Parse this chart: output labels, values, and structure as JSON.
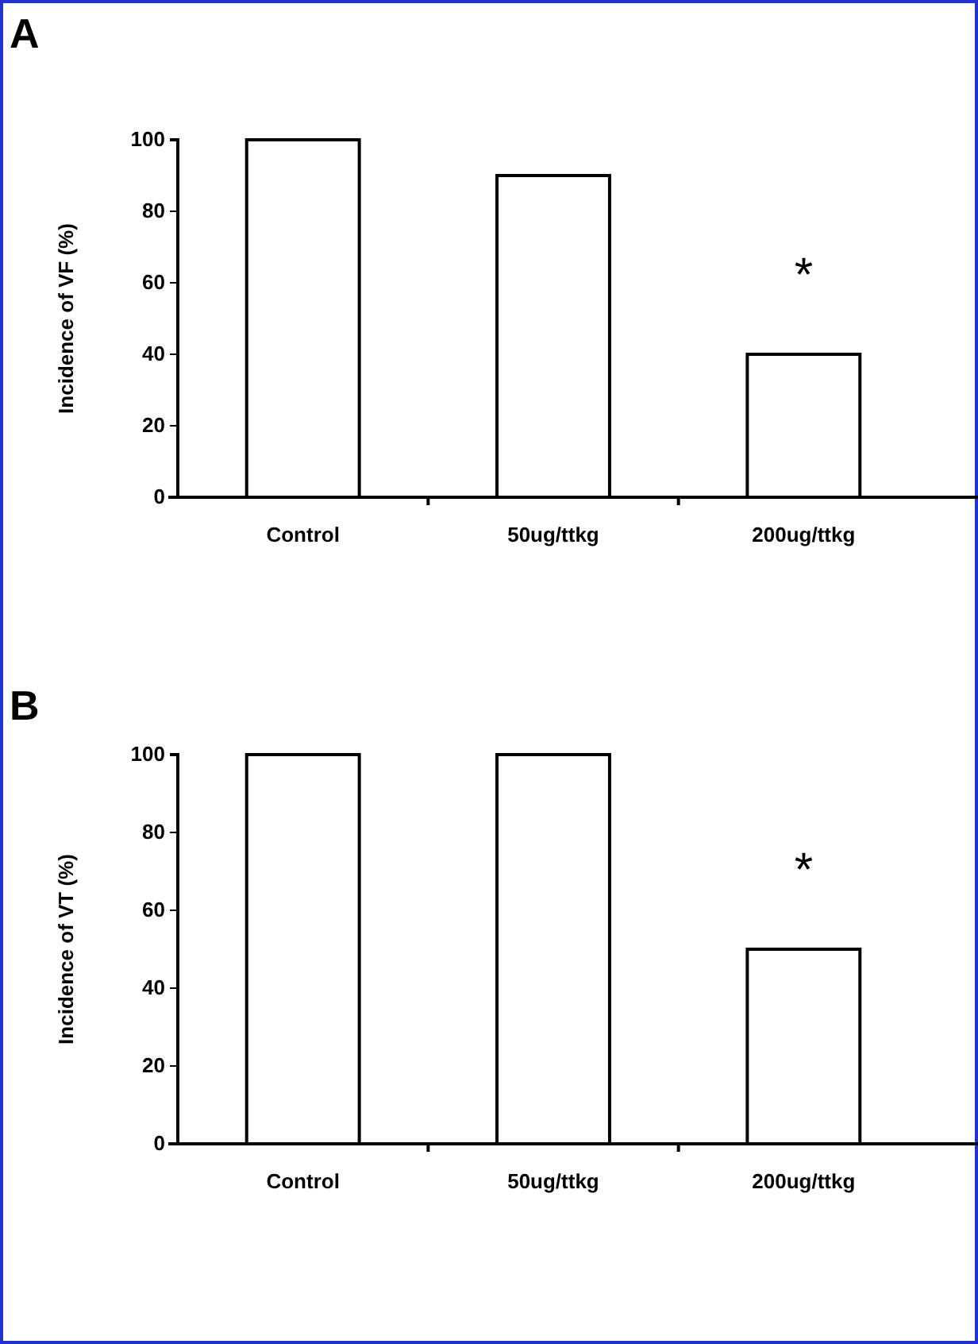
{
  "chart_data": [
    {
      "type": "bar",
      "title": "A",
      "ylabel": "Incidence of VF (%)",
      "categories": [
        "Control",
        "50ug/ttkg",
        "200ug/ttkg"
      ],
      "values": [
        100,
        90,
        40
      ],
      "color": "#ffffff",
      "ylim": [
        0,
        100
      ],
      "yticks": [
        0,
        20,
        40,
        60,
        80,
        100
      ],
      "grid": false,
      "annotations": [
        "*"
      ]
    },
    {
      "type": "bar",
      "title": "B",
      "ylabel": "Incidence of VT (%)",
      "categories": [
        "Control",
        "50ug/ttkg",
        "200ug/ttkg"
      ],
      "values": [
        100,
        100,
        50
      ],
      "color": "#ffffff",
      "ylim": [
        0,
        100
      ],
      "yticks": [
        0,
        20,
        40,
        60,
        80,
        100
      ],
      "grid": false,
      "annotations": [
        "*"
      ]
    }
  ]
}
